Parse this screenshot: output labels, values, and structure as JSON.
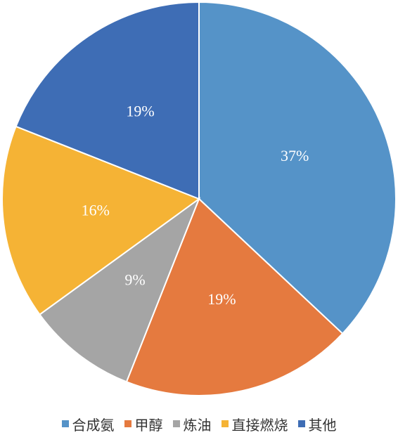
{
  "chart_data": {
    "type": "pie",
    "categories": [
      "合成氨",
      "甲醇",
      "炼油",
      "直接燃烧",
      "其他"
    ],
    "values": [
      37,
      19,
      9,
      16,
      19
    ],
    "value_labels": [
      "37%",
      "19%",
      "9%",
      "16%",
      "19%"
    ],
    "colors": [
      "#5593c8",
      "#e57a3f",
      "#a5a5a5",
      "#f5b335",
      "#3e6db5"
    ],
    "legend": "bottom"
  }
}
